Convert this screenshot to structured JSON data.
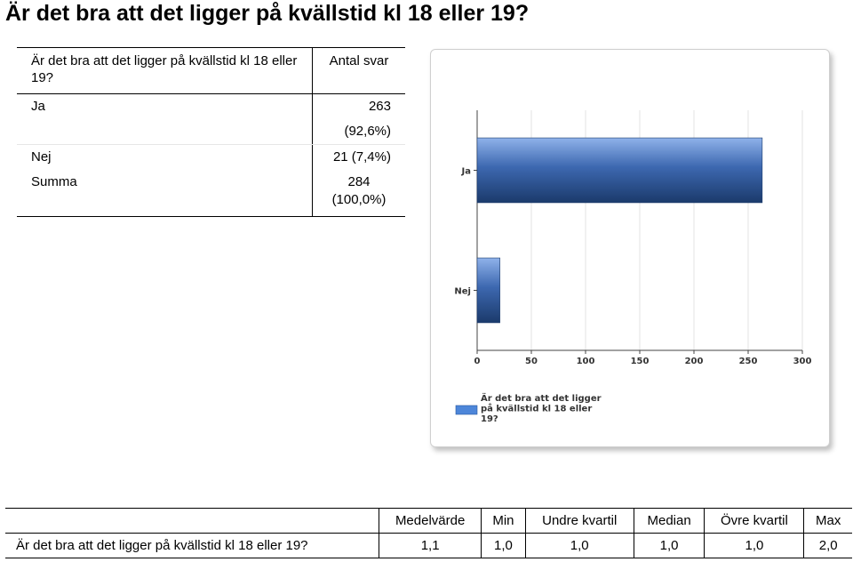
{
  "page_title": "Är det bra att det ligger på kvällstid kl 18 eller 19?",
  "summary": {
    "question": "Är det bra att det ligger på kvällstid kl 18 eller 19?",
    "count_header": "Antal svar",
    "rows": [
      {
        "label": "Ja",
        "value": "263 (92,6%)"
      },
      {
        "label": "Nej",
        "value": "21 (7,4%)"
      }
    ],
    "total_label": "Summa",
    "total_value_count": "284",
    "total_value_pct": "(100,0%)"
  },
  "chart_data": {
    "type": "bar",
    "orientation": "horizontal",
    "categories": [
      "Ja",
      "Nej"
    ],
    "values": [
      263,
      21
    ],
    "xlim": [
      0,
      300
    ],
    "xticks": [
      "0",
      "50",
      "100",
      "150",
      "200",
      "250",
      "300"
    ],
    "grid": true,
    "legend": {
      "placement": "bottom",
      "lines": [
        "Är det bra att det ligger",
        "på kvällstid kl 18 eller",
        "19?"
      ]
    },
    "colors": {
      "bar_dark": "#1b3a6b",
      "bar_light": "#8fb2ea",
      "legend_swatch": "#4d86d9"
    }
  },
  "stats": {
    "headers": [
      "Medelvärde",
      "Min",
      "Undre kvartil",
      "Median",
      "Övre kvartil",
      "Max"
    ],
    "row_label": "Är det bra att det ligger på kvällstid kl 18 eller 19?",
    "values": [
      "1,1",
      "1,0",
      "1,0",
      "1,0",
      "1,0",
      "2,0"
    ]
  }
}
